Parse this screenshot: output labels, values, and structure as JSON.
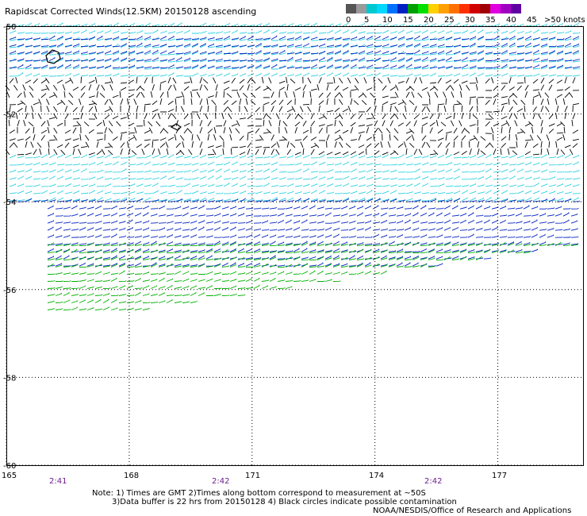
{
  "title": "Rapidscat Corrected Winds(12.5KM) 20150128 ascending",
  "legend": {
    "colors": [
      "#555555",
      "#9a9a9a",
      "#00c8d0",
      "#00d8ff",
      "#0070ff",
      "#0020c0",
      "#00a000",
      "#00e000",
      "#ffd000",
      "#ffa000",
      "#ff7000",
      "#ff3000",
      "#d00000",
      "#a00000",
      "#e000e0",
      "#a000c0",
      "#6000a0"
    ],
    "labels": [
      "0",
      "5",
      "10",
      "15",
      "20",
      "25",
      "30",
      "35",
      "40",
      "45",
      ">50 knots"
    ]
  },
  "axes": {
    "lon_ticks": [
      "165",
      "168",
      "171",
      "174",
      "177"
    ],
    "lat_ticks": [
      "-50",
      "-52",
      "-54",
      "-56",
      "-58",
      "-60"
    ],
    "lon_range": [
      165,
      179.1
    ],
    "lat_range": [
      -50,
      -60
    ]
  },
  "pass_times": [
    "2:41",
    "2:42",
    "2:42"
  ],
  "notes": {
    "line1": "Note: 1) Times are GMT 2)Times along bottom correspond to measurement at ~50S",
    "line2": "3)Data buffer is 22 hrs from 20150128 4) Black circles indicate possible contamination",
    "credit": "NOAA/NESDIS/Office of Research and Applications"
  },
  "map_data": {
    "wind_bands": [
      {
        "lat_from": -50.0,
        "lat_to": -51.3,
        "color": "#2bd0e0",
        "speed_kt": 12
      },
      {
        "lat_from": -50.3,
        "lat_to": -51.0,
        "color": "#0020c0",
        "speed_kt": 16
      },
      {
        "lat_from": -51.3,
        "lat_to": -53.0,
        "color": "#000000",
        "speed_kt": 4
      },
      {
        "lat_from": -53.0,
        "lat_to": -54.0,
        "color": "#2bd0e0",
        "speed_kt": 12
      },
      {
        "lat_from": -54.0,
        "lat_to": -55.6,
        "color": "#0020c0",
        "speed_kt": 17
      },
      {
        "lat_from": -55.0,
        "lat_to": -56.5,
        "color": "#00b000",
        "speed_kt": 22
      }
    ]
  }
}
